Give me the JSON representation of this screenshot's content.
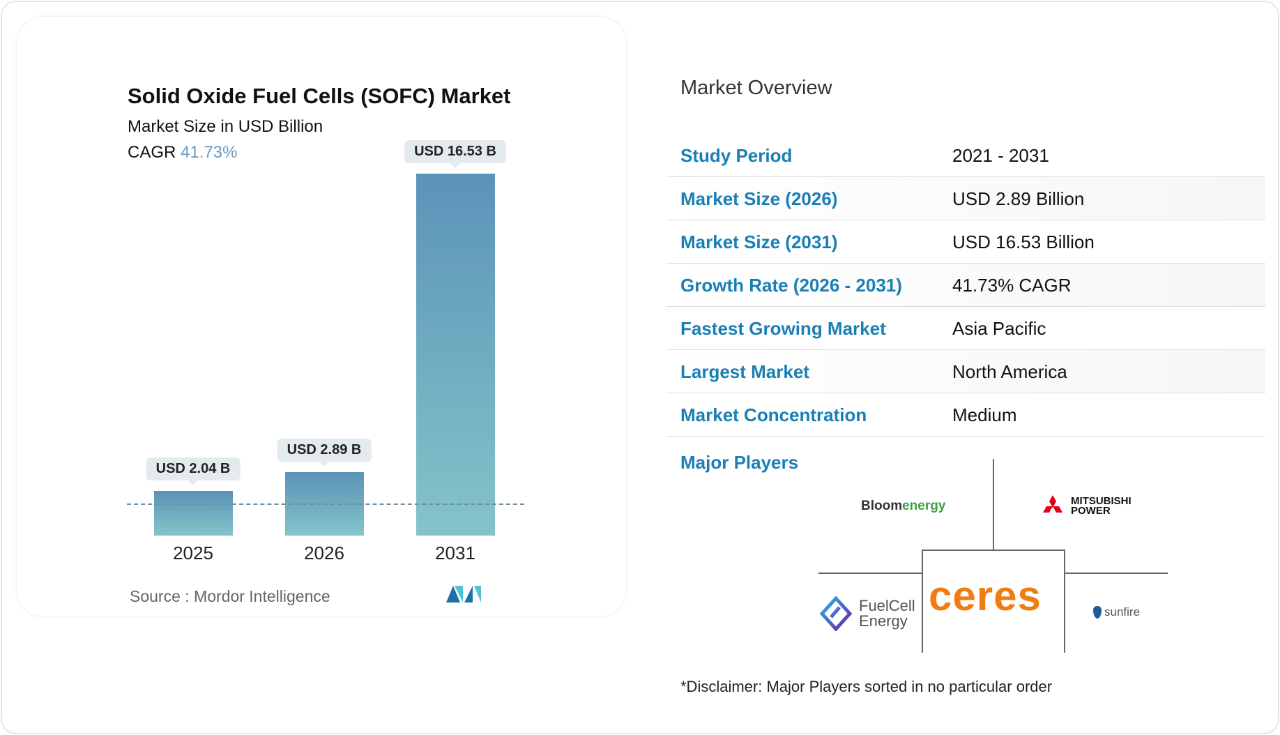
{
  "chart_data": {
    "type": "bar",
    "title": "Solid Oxide Fuel Cells (SOFC) Market",
    "subtitle": "Market Size in USD Billion",
    "cagr_label": "CAGR",
    "cagr_value": "41.73%",
    "categories": [
      "2025",
      "2026",
      "2031"
    ],
    "values": [
      2.04,
      2.89,
      16.53
    ],
    "data_labels": [
      "USD 2.04 B",
      "USD 2.89 B",
      "USD 16.53 B"
    ],
    "ylim": [
      0,
      16.53
    ],
    "colors": {
      "bar_top": "#5b93b8",
      "bar_bottom": "#84c4c9"
    }
  },
  "source": "Source :  Mordor Intelligence",
  "logo": "MI",
  "overview": {
    "title": "Market Overview",
    "rows": [
      {
        "k": "Study Period",
        "v": "2021 - 2031"
      },
      {
        "k": "Market Size (2026)",
        "v": "USD 2.89 Billion"
      },
      {
        "k": "Market Size (2031)",
        "v": "USD 16.53 Billion"
      },
      {
        "k": "Growth Rate (2026 - 2031)",
        "v": "41.73% CAGR"
      },
      {
        "k": "Fastest Growing Market",
        "v": "Asia Pacific"
      },
      {
        "k": "Largest Market",
        "v": "North America"
      },
      {
        "k": "Market Concentration",
        "v": "Medium"
      }
    ],
    "major_players_label": "Major Players",
    "players": [
      "Bloomenergy",
      "MITSUBISHI POWER",
      "FuelCell Energy",
      "ceres",
      "sunfire"
    ],
    "disclaimer": "*Disclaimer: Major Players sorted in no particular order"
  }
}
